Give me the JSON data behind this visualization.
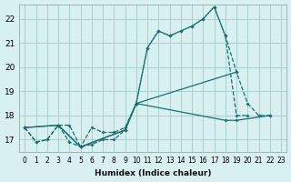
{
  "background_color": "#d8f0f0",
  "grid_color": "#aacfcf",
  "line_color": "#1a7070",
  "xlabel": "Humidex (Indice chaleur)",
  "xlim": [
    -0.5,
    23.5
  ],
  "ylim": [
    16.5,
    22.6
  ],
  "yticks": [
    17,
    18,
    19,
    20,
    21,
    22
  ],
  "xticks": [
    0,
    1,
    2,
    3,
    4,
    5,
    6,
    7,
    8,
    9,
    10,
    11,
    12,
    13,
    14,
    15,
    16,
    17,
    18,
    19,
    20,
    21,
    22,
    23
  ],
  "line1_x": [
    0,
    1,
    2,
    3,
    4,
    5,
    6,
    7,
    8,
    9,
    10,
    11,
    12,
    13,
    14,
    15,
    16,
    17,
    18,
    19,
    20
  ],
  "line1_y": [
    17.5,
    16.9,
    17.0,
    17.6,
    17.6,
    16.7,
    16.8,
    17.0,
    17.0,
    17.4,
    18.5,
    20.8,
    21.5,
    21.3,
    21.5,
    21.7,
    22.0,
    22.5,
    21.3,
    18.0,
    18.0
  ],
  "line2_x": [
    0,
    1,
    2,
    3,
    4,
    5,
    6,
    7,
    8,
    9,
    10,
    11,
    12,
    13,
    14,
    15,
    16,
    17,
    18,
    19,
    20,
    21,
    22
  ],
  "line2_y": [
    17.5,
    16.9,
    17.0,
    17.6,
    16.9,
    16.7,
    17.5,
    17.3,
    17.3,
    17.5,
    18.5,
    20.8,
    21.5,
    21.3,
    21.5,
    21.7,
    22.0,
    22.5,
    21.3,
    19.8,
    18.5,
    18.0,
    18.0
  ],
  "line3_x": [
    0,
    3,
    5,
    9,
    10,
    19
  ],
  "line3_y": [
    17.5,
    17.6,
    16.7,
    17.4,
    18.5,
    19.8
  ],
  "line4_x": [
    0,
    3,
    5,
    9,
    10,
    18,
    19,
    22
  ],
  "line4_y": [
    17.5,
    17.6,
    16.7,
    17.4,
    18.5,
    17.8,
    17.8,
    18.0
  ]
}
